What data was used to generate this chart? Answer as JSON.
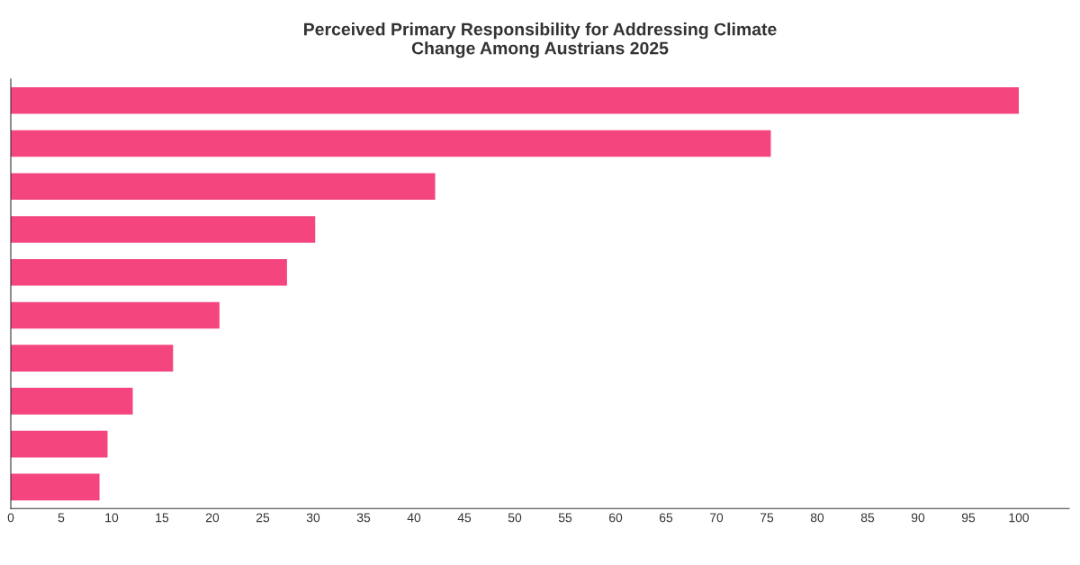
{
  "chart_data": {
    "type": "bar",
    "orientation": "horizontal",
    "title": "Perceived Primary Responsibility for Addressing Climate\nChange Among Austrians 2025",
    "categories": [
      null,
      null,
      null,
      null,
      null,
      null,
      null,
      null,
      null,
      null
    ],
    "values": [
      100,
      75.4,
      42.1,
      30.2,
      27.4,
      20.7,
      16.1,
      12.1,
      9.6,
      8.8
    ],
    "color": "#f5457f",
    "xlim": [
      0,
      105
    ],
    "xticks": [
      0,
      5,
      10,
      15,
      20,
      25,
      30,
      35,
      40,
      45,
      50,
      55,
      60,
      65,
      70,
      75,
      80,
      85,
      90,
      95,
      100
    ],
    "tick_labels": "x",
    "grid": false,
    "legend": false
  }
}
